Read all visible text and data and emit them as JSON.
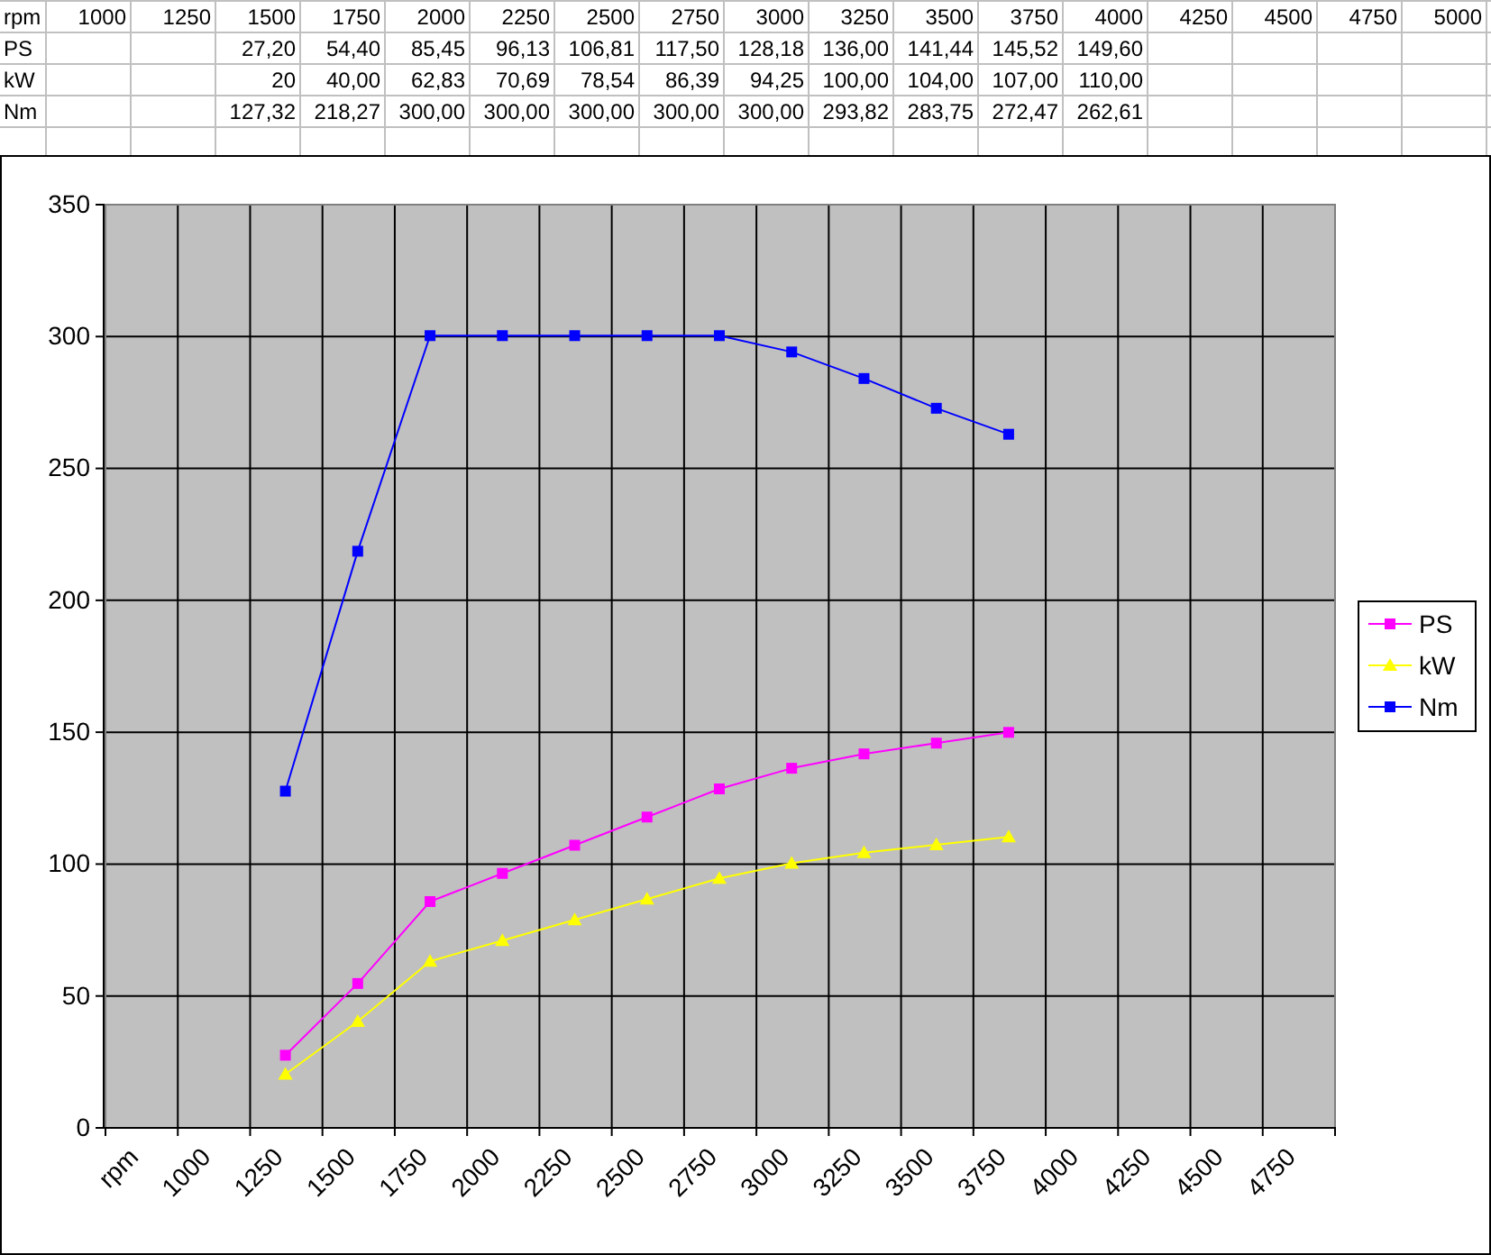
{
  "chart_data": [
    {
      "type": "heatmap",
      "xlabel": "rpm",
      "categories": [
        "1000",
        "1250",
        "1500",
        "1750",
        "2000",
        "2250",
        "2500",
        "2750",
        "3000",
        "3250",
        "3500",
        "3750",
        "4000",
        "4250",
        "4500",
        "4750",
        "5000"
      ],
      "y_categories": [
        "PS",
        "kW",
        "Nm"
      ],
      "cells": [
        [
          null,
          null,
          27.2,
          54.4,
          85.45,
          96.13,
          106.81,
          117.5,
          128.18,
          136,
          141.44,
          145.52,
          149.6,
          null,
          null,
          null,
          null
        ],
        [
          null,
          null,
          20,
          40,
          62.83,
          70.69,
          78.54,
          86.39,
          94.25,
          100,
          104,
          107,
          110,
          null,
          null,
          null,
          null
        ],
        [
          null,
          null,
          127.32,
          218.27,
          300,
          300,
          300,
          300,
          300,
          293.82,
          283.75,
          272.47,
          262.61,
          null,
          null,
          null,
          null
        ]
      ],
      "cell_labels": [
        [
          null,
          null,
          "27,20",
          "54,40",
          "85,45",
          "96,13",
          "106,81",
          "117,50",
          "128,18",
          "136,00",
          "141,44",
          "145,52",
          "149,60",
          null,
          null,
          null,
          null
        ],
        [
          null,
          null,
          "20",
          "40,00",
          "62,83",
          "70,69",
          "78,54",
          "86,39",
          "94,25",
          "100,00",
          "104,00",
          "107,00",
          "110,00",
          null,
          null,
          null,
          null
        ],
        [
          null,
          null,
          "127,32",
          "218,27",
          "300,00",
          "300,00",
          "300,00",
          "300,00",
          "300,00",
          "293,82",
          "283,75",
          "272,47",
          "262,61",
          null,
          null,
          null,
          null
        ]
      ]
    },
    {
      "type": "line",
      "categories": [
        "rpm",
        "1000",
        "1250",
        "1500",
        "1750",
        "2000",
        "2250",
        "2500",
        "2750",
        "3000",
        "3250",
        "3500",
        "3750",
        "4000",
        "4250",
        "4500",
        "4750"
      ],
      "ylim": [
        0,
        350
      ],
      "yticks": [
        0,
        50,
        100,
        150,
        200,
        250,
        300,
        350
      ],
      "grid": true,
      "legend": "right",
      "series": [
        {
          "name": "PS",
          "color": "#ff00ff",
          "marker": "square",
          "values": [
            null,
            null,
            27.2,
            54.4,
            85.45,
            96.13,
            106.81,
            117.5,
            128.18,
            136,
            141.44,
            145.52,
            149.6,
            null,
            null,
            null,
            null
          ]
        },
        {
          "name": "kW",
          "color": "#ffff00",
          "marker": "triangle",
          "values": [
            null,
            null,
            20,
            40,
            62.83,
            70.69,
            78.54,
            86.39,
            94.25,
            100,
            104,
            107,
            110,
            null,
            null,
            null,
            null
          ]
        },
        {
          "name": "Nm",
          "color": "#0000ff",
          "marker": "square",
          "values": [
            null,
            null,
            127.32,
            218.27,
            300,
            300,
            300,
            300,
            300,
            293.82,
            283.75,
            272.47,
            262.61,
            null,
            null,
            null,
            null
          ]
        }
      ]
    }
  ]
}
